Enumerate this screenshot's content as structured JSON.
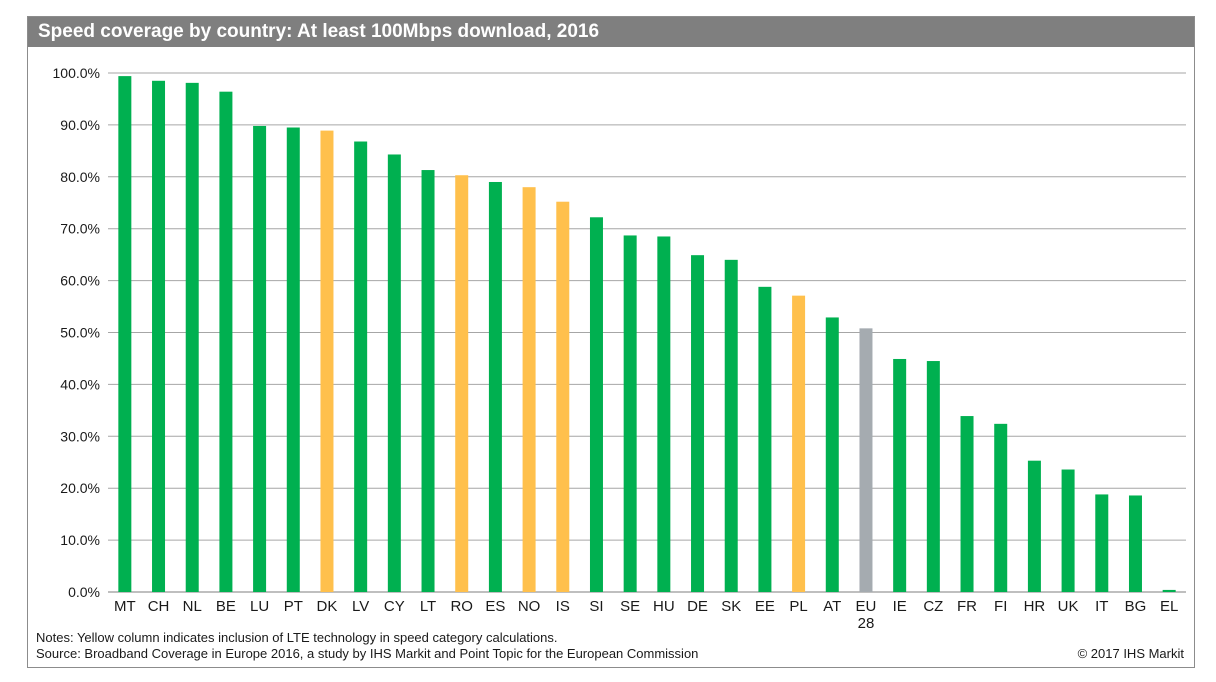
{
  "colors": {
    "standard": "#00b050",
    "lte": "#ffc04c",
    "average": "#a5abb0",
    "title_bg": "#7f7f7f",
    "grid": "#a6a6a6"
  },
  "notes_line1": "Notes: Yellow column indicates inclusion of LTE technology in speed category calculations.",
  "notes_line2": "Source: Broadband Coverage in Europe 2016, a study by IHS Markit and Point Topic for the European Commission",
  "copyright": "© 2017 IHS Markit",
  "chart_data": {
    "type": "bar",
    "title": "Speed coverage by country: At least 100Mbps download, 2016",
    "xlabel": "",
    "ylabel": "",
    "ylim": [
      0,
      100
    ],
    "yticks": [
      0,
      10,
      20,
      30,
      40,
      50,
      60,
      70,
      80,
      90,
      100
    ],
    "ytick_labels": [
      "0.0%",
      "10.0%",
      "20.0%",
      "30.0%",
      "40.0%",
      "50.0%",
      "60.0%",
      "70.0%",
      "80.0%",
      "90.0%",
      "100.0%"
    ],
    "grid": true,
    "legend": "none",
    "categories": [
      "MT",
      "CH",
      "NL",
      "BE",
      "LU",
      "PT",
      "DK",
      "LV",
      "CY",
      "LT",
      "RO",
      "ES",
      "NO",
      "IS",
      "SI",
      "SE",
      "HU",
      "DE",
      "SK",
      "EE",
      "PL",
      "AT",
      "EU 28",
      "IE",
      "CZ",
      "FR",
      "FI",
      "HR",
      "UK",
      "IT",
      "BG",
      "EL"
    ],
    "values": [
      99.4,
      98.5,
      98.1,
      96.4,
      89.8,
      89.5,
      88.9,
      86.8,
      84.3,
      81.3,
      80.3,
      79.0,
      78.0,
      75.2,
      72.2,
      68.7,
      68.5,
      64.9,
      64.0,
      58.8,
      57.1,
      52.9,
      50.8,
      44.9,
      44.5,
      33.9,
      32.4,
      25.3,
      23.6,
      18.8,
      18.6,
      0.4
    ],
    "bar_kinds": [
      "standard",
      "standard",
      "standard",
      "standard",
      "standard",
      "standard",
      "lte",
      "standard",
      "standard",
      "standard",
      "lte",
      "standard",
      "lte",
      "lte",
      "standard",
      "standard",
      "standard",
      "standard",
      "standard",
      "standard",
      "lte",
      "standard",
      "average",
      "standard",
      "standard",
      "standard",
      "standard",
      "standard",
      "standard",
      "standard",
      "standard",
      "standard"
    ]
  }
}
